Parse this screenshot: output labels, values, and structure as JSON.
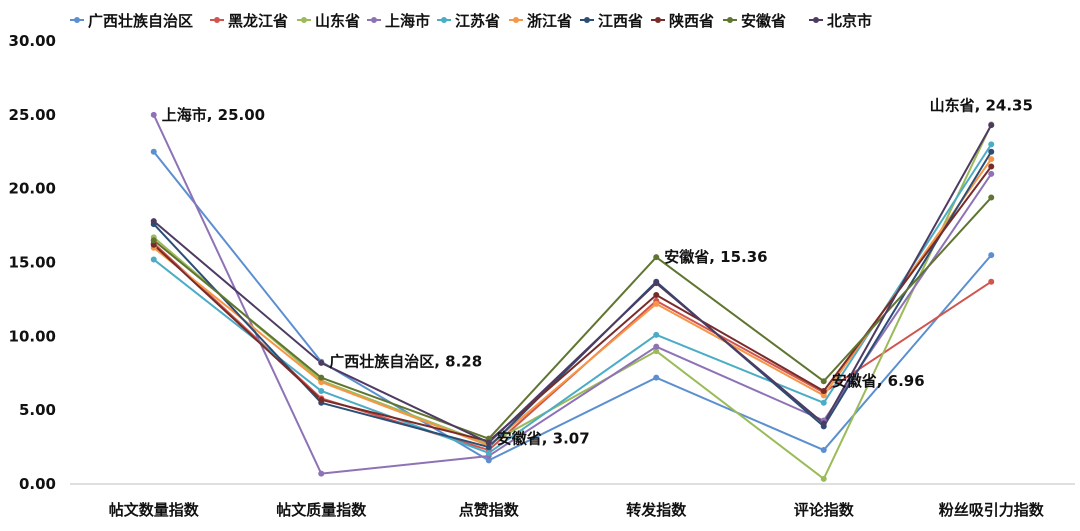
{
  "chart_data": {
    "type": "line",
    "title": "",
    "xlabel": "",
    "ylabel": "",
    "categories": [
      "帖文数量指数",
      "帖文质量指数",
      "点赞指数",
      "转发指数",
      "评论指数",
      "粉丝吸引力指数"
    ],
    "ylim": [
      0,
      30
    ],
    "yticks": [
      "0.00",
      "5.00",
      "10.00",
      "15.00",
      "20.00",
      "25.00",
      "30.00"
    ],
    "grid": false,
    "legend_position": "top",
    "series": [
      {
        "name": "广西壮族自治区",
        "color": "#5b8fd0",
        "values": [
          22.5,
          8.28,
          1.6,
          7.2,
          2.3,
          15.5
        ]
      },
      {
        "name": "黑龙江省",
        "color": "#d0554f",
        "values": [
          16.3,
          5.8,
          2.3,
          12.4,
          6.2,
          13.7
        ]
      },
      {
        "name": "山东省",
        "color": "#9bbb59",
        "values": [
          16.7,
          7.0,
          2.7,
          9.0,
          0.35,
          24.35
        ]
      },
      {
        "name": "上海市",
        "color": "#8e72b6",
        "values": [
          25.0,
          0.7,
          1.9,
          9.3,
          4.3,
          21.0
        ]
      },
      {
        "name": "江苏省",
        "color": "#4bacc6",
        "values": [
          15.2,
          6.3,
          2.1,
          10.1,
          5.5,
          23.0
        ]
      },
      {
        "name": "浙江省",
        "color": "#f79646",
        "values": [
          16.0,
          6.9,
          2.6,
          12.2,
          6.0,
          22.0
        ]
      },
      {
        "name": "江西省",
        "color": "#2c4d75",
        "values": [
          17.6,
          5.5,
          2.5,
          13.7,
          3.9,
          22.5
        ]
      },
      {
        "name": "陕西省",
        "color": "#772c2a",
        "values": [
          16.2,
          5.7,
          2.9,
          12.8,
          6.3,
          21.5
        ]
      },
      {
        "name": "安徽省",
        "color": "#5f7530",
        "values": [
          16.5,
          7.2,
          3.07,
          15.36,
          6.96,
          19.4
        ]
      },
      {
        "name": "北京市",
        "color": "#4d3b62",
        "values": [
          17.8,
          8.2,
          2.8,
          13.6,
          4.1,
          24.3
        ]
      }
    ],
    "annotations": [
      {
        "text": "上海市, 25.00",
        "category_index": 0,
        "series": "上海市"
      },
      {
        "text": "广西壮族自治区, 8.28",
        "category_index": 1,
        "series": "广西壮族自治区"
      },
      {
        "text": "安徽省, 3.07",
        "category_index": 2,
        "series": "安徽省"
      },
      {
        "text": "安徽省, 15.36",
        "category_index": 3,
        "series": "安徽省"
      },
      {
        "text": "安徽省, 6.96",
        "category_index": 4,
        "series": "安徽省"
      },
      {
        "text": "山东省, 24.35",
        "category_index": 5,
        "series": "山东省"
      }
    ]
  }
}
